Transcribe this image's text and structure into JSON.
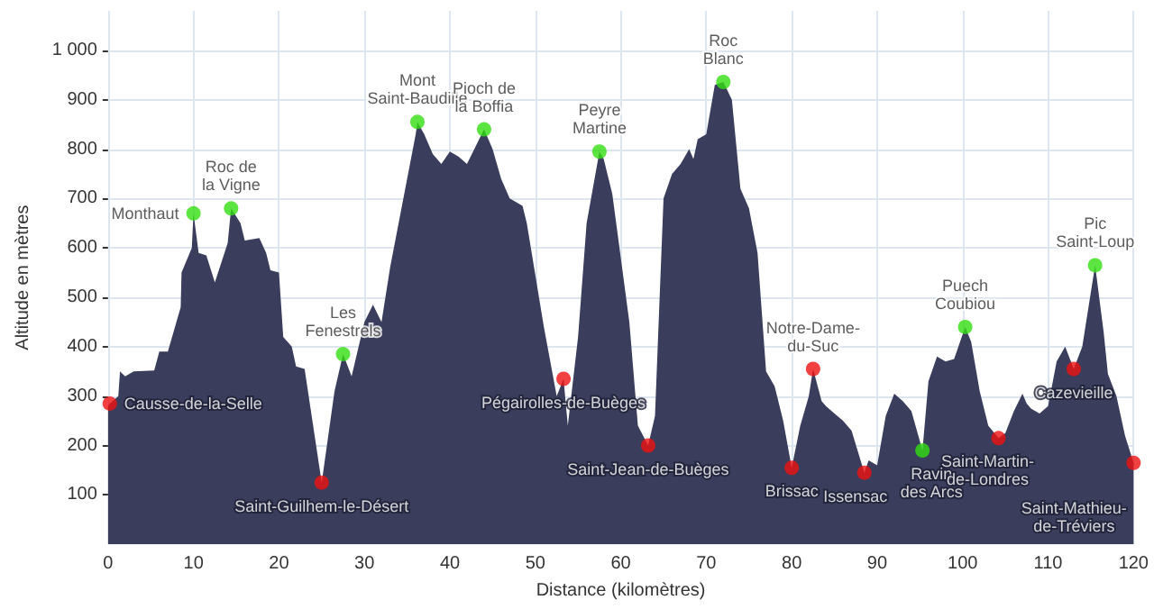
{
  "chart_data": {
    "type": "area",
    "xlabel": "Distance (kilomètres)",
    "ylabel": "Altitude en mètres",
    "xlim": [
      0,
      120
    ],
    "xticks": [
      0,
      10,
      20,
      30,
      40,
      50,
      60,
      70,
      80,
      90,
      100,
      110,
      120
    ],
    "ylim": [
      0,
      1080
    ],
    "yticks": [
      100,
      200,
      300,
      400,
      500,
      600,
      700,
      800,
      900,
      {
        "value": 1000,
        "label": "1 000"
      }
    ],
    "grid": true,
    "series": [
      {
        "color": "#3a3d5c",
        "marker": "none",
        "x": [
          0,
          0.2,
          1.2,
          1.4,
          2,
          3,
          5.4,
          6,
          7,
          8.5,
          8.6,
          9.8,
          10,
          10.6,
          11.5,
          12.5,
          14,
          14.4,
          15.5,
          16,
          17.7,
          18.5,
          19,
          20,
          20.5,
          21.5,
          22,
          23,
          25,
          26.5,
          27.5,
          28.5,
          30,
          31,
          32,
          33,
          36,
          36.2,
          37,
          38,
          39,
          40,
          41,
          42,
          43,
          44,
          45,
          46,
          47,
          48.5,
          49,
          51,
          52.5,
          53.3,
          53.8,
          55,
          56,
          57.5,
          58,
          59,
          60,
          61,
          62,
          63.2,
          64,
          65,
          66,
          67,
          68,
          68.5,
          69,
          70,
          71,
          72,
          73,
          74,
          75,
          76,
          77,
          78,
          79,
          80,
          81,
          82,
          82.5,
          83.5,
          84,
          85,
          86,
          87,
          88.5,
          89,
          90,
          91,
          92,
          93,
          94,
          95.3,
          96,
          97,
          98,
          99,
          100.3,
          101,
          102,
          103,
          104.2,
          105,
          106,
          107,
          107.5,
          108,
          109,
          110,
          111,
          112,
          113,
          114,
          115.5,
          116.5,
          117,
          118,
          119,
          120
        ],
        "values": [
          280,
          285,
          300,
          350,
          340,
          350,
          352,
          390,
          390,
          480,
          550,
          600,
          670,
          590,
          585,
          530,
          610,
          680,
          650,
          615,
          620,
          590,
          555,
          550,
          420,
          400,
          360,
          355,
          125,
          310,
          385,
          340,
          450,
          485,
          450,
          560,
          830,
          855,
          830,
          790,
          770,
          795,
          785,
          770,
          805,
          840,
          800,
          740,
          700,
          685,
          650,
          440,
          300,
          335,
          240,
          420,
          650,
          795,
          780,
          710,
          580,
          450,
          240,
          200,
          260,
          700,
          750,
          770,
          800,
          780,
          820,
          830,
          930,
          936,
          900,
          720,
          680,
          590,
          350,
          320,
          250,
          155,
          240,
          300,
          355,
          290,
          280,
          265,
          250,
          230,
          145,
          170,
          160,
          260,
          305,
          290,
          270,
          190,
          330,
          380,
          370,
          375,
          440,
          410,
          310,
          240,
          215,
          225,
          270,
          305,
          285,
          275,
          265,
          280,
          370,
          400,
          355,
          400,
          565,
          430,
          345,
          300,
          220,
          165
        ]
      },
      {
        "type": "scatter",
        "color": "#33dd11",
        "marker": "circle",
        "x": [
          10,
          14.4,
          27.5,
          36.2,
          44,
          57.5,
          72,
          95.3,
          100.3,
          115.5
        ],
        "values": [
          670,
          680,
          385,
          855,
          840,
          795,
          936,
          190,
          440,
          565
        ],
        "value_labels": [
          "Monthaut",
          "Roc de\nla Vigne",
          "Les\nFenestrels",
          "Mont\nSaint-Baudille",
          "Pioch de\nla Boffia",
          "Peyre\nMartine",
          "Roc\nBlanc",
          "Ravin\ndes Arcs",
          "Puech\nCoubiou",
          "Pic\nSaint-Loup"
        ]
      },
      {
        "type": "scatter",
        "color": "#ee1111",
        "marker": "circle",
        "x": [
          0.2,
          25,
          53.3,
          63.2,
          80,
          82.5,
          88.5,
          104.2,
          113,
          120
        ],
        "values": [
          285,
          125,
          335,
          200,
          155,
          355,
          145,
          215,
          355,
          165
        ],
        "value_labels": [
          "Causse-de-la-Selle",
          "Saint-Guilhem-le-Désert",
          "Pégairolles-de-Buèges",
          "Saint-Jean-de-Buèges",
          "Brissac",
          "Notre-Dame-\ndu-Suc",
          "Issensac",
          "Saint-Martin-\nde-Londres",
          "Cazevieille",
          "Saint-Mathieu-\nde-Tréviers"
        ]
      }
    ]
  }
}
